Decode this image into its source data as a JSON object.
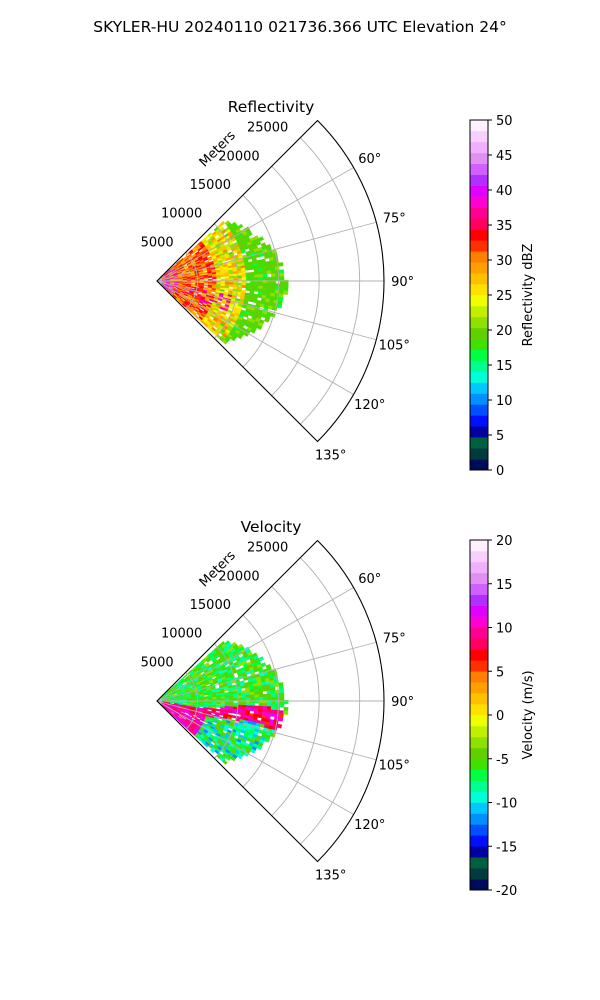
{
  "figure": {
    "suptitle": "SKYLER-HU  20240110  021736.366 UTC Elevation 24°"
  },
  "chart_data": [
    {
      "type": "polar_sector",
      "title": "Reflectivity",
      "radial_label": "Meters",
      "r_ticks": [
        5000,
        10000,
        15000,
        20000,
        25000
      ],
      "r_max": 28000,
      "theta_ticks_deg": [
        60,
        75,
        90,
        105,
        120,
        135
      ],
      "theta_range_deg": [
        45,
        135
      ],
      "grid": true,
      "colorbar": {
        "label": "Reflectivity dBZ",
        "min": 0,
        "max": 50,
        "ticks": [
          0,
          5,
          10,
          15,
          20,
          25,
          30,
          35,
          40,
          45,
          50
        ],
        "colors": [
          "#000a5a",
          "#003c3c",
          "#006040",
          "#0000a0",
          "#0010ff",
          "#0050ff",
          "#0090ff",
          "#00c8ff",
          "#00ffd8",
          "#00ff90",
          "#00ff40",
          "#40e000",
          "#60d000",
          "#90e000",
          "#c0f000",
          "#f0ff00",
          "#ffe000",
          "#ffc000",
          "#ffa000",
          "#ff8000",
          "#ff3000",
          "#ff0000",
          "#ff0060",
          "#ff0090",
          "#ff00d0",
          "#e000ff",
          "#b030ff",
          "#d060ff",
          "#e090f0",
          "#f0b0ff",
          "#f8d0ff",
          "#fff0ff"
        ]
      }
    },
    {
      "type": "polar_sector",
      "title": "Velocity",
      "radial_label": "Meters",
      "r_ticks": [
        5000,
        10000,
        15000,
        20000,
        25000
      ],
      "r_max": 28000,
      "theta_ticks_deg": [
        60,
        75,
        90,
        105,
        120,
        135
      ],
      "theta_range_deg": [
        45,
        135
      ],
      "grid": true,
      "colorbar": {
        "label": "Velocity (m/s)",
        "min": -20,
        "max": 20,
        "ticks": [
          -20,
          -15,
          -10,
          -5,
          0,
          5,
          10,
          15,
          20
        ],
        "colors": [
          "#000a5a",
          "#003c3c",
          "#006040",
          "#0000a0",
          "#0010ff",
          "#0050ff",
          "#0090ff",
          "#00c8ff",
          "#00ffd8",
          "#00ff90",
          "#00ff40",
          "#40e000",
          "#60d000",
          "#90e000",
          "#c0f000",
          "#f0ff00",
          "#ffe000",
          "#ffc000",
          "#ffa000",
          "#ff8000",
          "#ff3000",
          "#ff0000",
          "#ff0060",
          "#ff0090",
          "#ff00d0",
          "#e000ff",
          "#b030ff",
          "#d060ff",
          "#e090f0",
          "#f0b0ff",
          "#f8d0ff",
          "#fff0ff"
        ]
      }
    }
  ]
}
